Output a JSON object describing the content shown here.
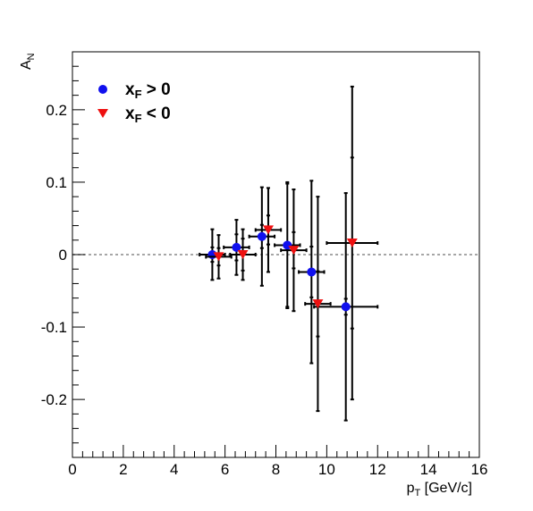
{
  "chart_data": {
    "type": "scatter",
    "title": "",
    "xlabel": {
      "main": "p",
      "sub": "T",
      "rest": " [GeV/c]"
    },
    "ylabel": {
      "main": "A",
      "sub": "N"
    },
    "xlim": [
      0,
      16
    ],
    "ylim": [
      -0.28,
      0.28
    ],
    "xticks": [
      "0",
      "2",
      "4",
      "6",
      "8",
      "10",
      "12",
      "14",
      "16"
    ],
    "yticks": [
      "-0.2",
      "-0.1",
      "0",
      "0.1",
      "0.2"
    ],
    "grid": false,
    "legend_position": "top-left",
    "zero_line": {
      "y": 0,
      "style": "dotted",
      "color": "#888888"
    },
    "series": [
      {
        "name": {
          "main": "x",
          "sub": "F",
          "rest": " > 0"
        },
        "marker": "circle",
        "color": "#1010ee",
        "points": [
          {
            "x": 5.5,
            "y": 0.0,
            "xerr": 0.5,
            "ystat": 0.01,
            "ysys": 0.035
          },
          {
            "x": 6.45,
            "y": 0.01,
            "xerr": 0.5,
            "ystat": 0.018,
            "ysys": 0.038
          },
          {
            "x": 7.45,
            "y": 0.025,
            "xerr": 0.5,
            "ystat": 0.016,
            "ysys": 0.068
          },
          {
            "x": 8.45,
            "y": 0.013,
            "xerr": 0.5,
            "ystat": 0.085,
            "ysys": 0.087
          },
          {
            "x": 9.4,
            "y": -0.024,
            "xerr": 0.5,
            "ystat": 0.035,
            "ysys": 0.126
          },
          {
            "x": 10.75,
            "y": -0.072,
            "xerr": 1.25,
            "ystat": 0.011,
            "ysys": 0.157
          }
        ]
      },
      {
        "name": {
          "main": "x",
          "sub": "F",
          "rest": " < 0"
        },
        "marker": "triangle-down",
        "color": "#ee1010",
        "points": [
          {
            "x": 5.75,
            "y": -0.003,
            "xerr": 0.5,
            "ystat": 0.012,
            "ysys": 0.03
          },
          {
            "x": 6.7,
            "y": 0.0,
            "xerr": 0.5,
            "ystat": 0.022,
            "ysys": 0.035
          },
          {
            "x": 7.7,
            "y": 0.034,
            "xerr": 0.5,
            "ystat": 0.02,
            "ysys": 0.058
          },
          {
            "x": 8.7,
            "y": 0.006,
            "xerr": 0.5,
            "ystat": 0.025,
            "ysys": 0.084
          },
          {
            "x": 9.65,
            "y": -0.068,
            "xerr": 0.5,
            "ystat": 0.045,
            "ysys": 0.148
          },
          {
            "x": 11.0,
            "y": 0.016,
            "xerr": 1.0,
            "ystat": 0.118,
            "ysys": 0.216
          }
        ]
      }
    ]
  }
}
